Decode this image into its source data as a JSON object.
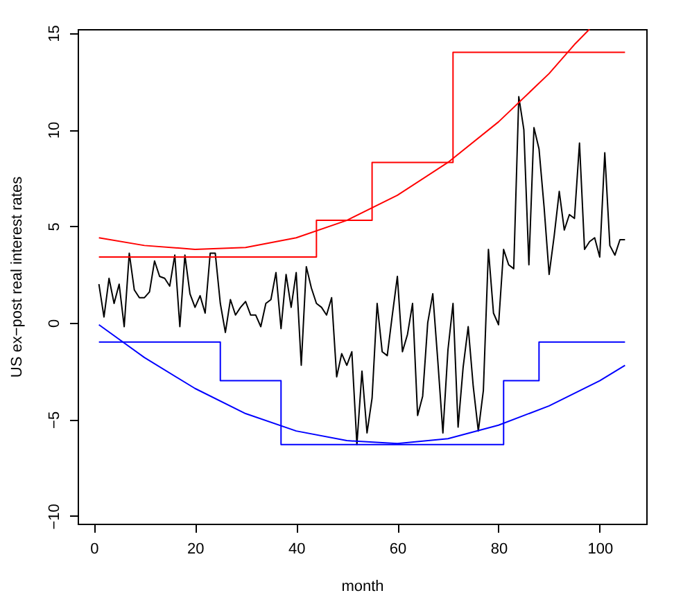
{
  "chart_data": {
    "type": "line",
    "xlabel": "month",
    "ylabel": "US ex−post real interest rates",
    "xlim": [
      -3.2,
      109.2
    ],
    "ylim": [
      -10.4,
      15.2
    ],
    "xticks": [
      0,
      20,
      40,
      60,
      80,
      100
    ],
    "yticks": [
      -10,
      -5,
      0,
      5,
      10,
      15
    ],
    "grid": false,
    "marker": "none",
    "line_style": "solid",
    "series": [
      {
        "color": "#000000",
        "x": [
          1,
          2,
          3,
          4,
          5,
          6,
          7,
          8,
          9,
          10,
          11,
          12,
          13,
          14,
          15,
          16,
          17,
          18,
          19,
          20,
          21,
          22,
          23,
          24,
          25,
          26,
          27,
          28,
          29,
          30,
          31,
          32,
          33,
          34,
          35,
          36,
          37,
          38,
          39,
          40,
          41,
          42,
          43,
          44,
          45,
          46,
          47,
          48,
          49,
          50,
          51,
          52,
          53,
          54,
          55,
          56,
          57,
          58,
          59,
          60,
          61,
          62,
          63,
          64,
          65,
          66,
          67,
          68,
          69,
          70,
          71,
          72,
          73,
          74,
          75,
          76,
          77,
          78,
          79,
          80,
          81,
          82,
          83,
          84,
          85,
          86,
          87,
          88,
          89,
          90,
          91,
          92,
          93,
          94,
          95,
          96,
          97,
          98,
          99,
          100,
          101,
          102,
          103,
          104,
          105
        ],
        "values": [
          2.0,
          0.3,
          2.3,
          1.0,
          2.0,
          -0.2,
          3.6,
          1.7,
          1.3,
          1.3,
          1.6,
          3.2,
          2.4,
          2.3,
          1.9,
          3.5,
          -0.2,
          3.5,
          1.5,
          0.8,
          1.4,
          0.5,
          3.6,
          3.6,
          1.0,
          -0.5,
          1.2,
          0.4,
          0.8,
          1.1,
          0.4,
          0.4,
          -0.2,
          1.0,
          1.2,
          2.6,
          -0.3,
          2.5,
          0.8,
          2.6,
          -2.2,
          2.9,
          1.8,
          1.0,
          0.8,
          0.4,
          1.3,
          -2.8,
          -1.6,
          -2.2,
          -1.5,
          -6.3,
          -2.5,
          -5.7,
          -3.9,
          1.0,
          -1.5,
          -1.7,
          0.4,
          2.4,
          -1.5,
          -0.6,
          1.0,
          -4.8,
          -3.8,
          0.0,
          1.5,
          -2.0,
          -5.7,
          -1.4,
          1.0,
          -5.4,
          -2.3,
          -0.2,
          -3.3,
          -5.6,
          -3.5,
          3.8,
          0.5,
          -0.1,
          3.8,
          3.0,
          2.8,
          11.7,
          10.0,
          3.0,
          10.1,
          9.0,
          6.0,
          2.5,
          4.5,
          6.8,
          4.8,
          5.6,
          5.4,
          9.3,
          3.8,
          4.2,
          4.4,
          3.4,
          8.8,
          4.0,
          3.5,
          4.3,
          4.3
        ]
      },
      {
        "type": "step",
        "color": "#ff0000",
        "x": [
          1,
          44,
          55,
          71,
          105
        ],
        "values": [
          3.4,
          5.3,
          8.3,
          14.0,
          14.0
        ]
      },
      {
        "color": "#ff0000",
        "x": [
          1,
          10,
          20,
          30,
          40,
          50,
          60,
          70,
          80,
          90,
          95,
          98
        ],
        "values": [
          4.4,
          4.0,
          3.8,
          3.9,
          4.4,
          5.3,
          6.6,
          8.3,
          10.4,
          12.9,
          14.4,
          15.2
        ]
      },
      {
        "type": "step",
        "color": "#0000ff",
        "x": [
          1,
          25,
          37,
          81,
          88,
          105
        ],
        "values": [
          -1.0,
          -3.0,
          -6.3,
          -3.0,
          -1.0,
          -1.0
        ]
      },
      {
        "color": "#0000ff",
        "x": [
          1,
          10,
          20,
          30,
          40,
          50,
          60,
          70,
          80,
          90,
          100,
          105
        ],
        "values": [
          -0.1,
          -1.8,
          -3.4,
          -4.7,
          -5.6,
          -6.1,
          -6.25,
          -6.0,
          -5.3,
          -4.3,
          -3.0,
          -2.2
        ]
      }
    ]
  }
}
